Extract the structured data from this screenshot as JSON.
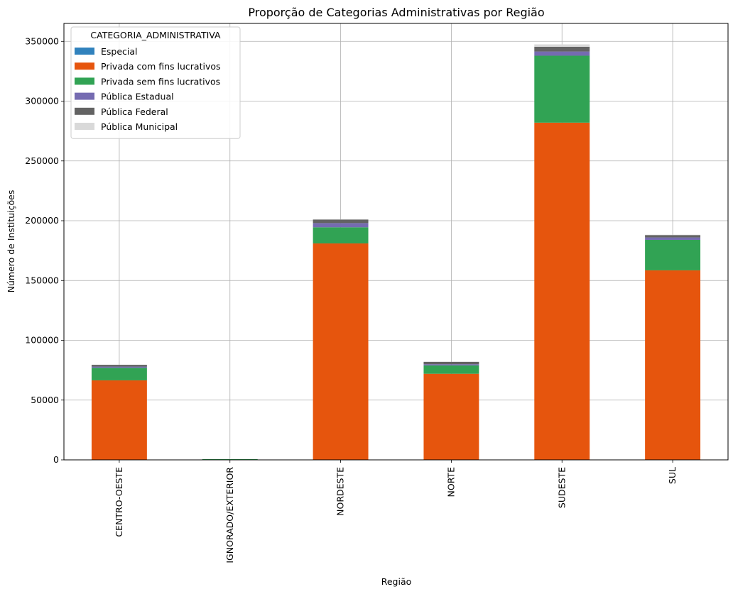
{
  "chart_data": {
    "type": "bar",
    "stacked": true,
    "title": "Proporção de Categorias Administrativas por Região",
    "xlabel": "Região",
    "ylabel": "Número de Instituições",
    "categories": [
      "CENTRO-OESTE",
      "IGNORADO/EXTERIOR",
      "NORDESTE",
      "NORTE",
      "SUDESTE",
      "SUL"
    ],
    "ylim": [
      0,
      365000
    ],
    "yticks": [
      0,
      50000,
      100000,
      150000,
      200000,
      250000,
      300000,
      350000
    ],
    "grid": true,
    "legend": {
      "title": "CATEGORIA_ADMINISTRATIVA",
      "placement": "top-left"
    },
    "series": [
      {
        "name": "Especial",
        "color": "#3182bd",
        "values": [
          0,
          0,
          0,
          0,
          0,
          0
        ]
      },
      {
        "name": "Privada com fins lucrativos",
        "color": "#e6550d",
        "values": [
          66500,
          300,
          181000,
          72000,
          282000,
          158500
        ]
      },
      {
        "name": "Privada sem fins lucrativos",
        "color": "#31a354",
        "values": [
          10500,
          300,
          13500,
          7000,
          56000,
          25500
        ]
      },
      {
        "name": "Pública Estadual",
        "color": "#756bb1",
        "values": [
          1000,
          0,
          3500,
          1000,
          3500,
          2000
        ]
      },
      {
        "name": "Pública Federal",
        "color": "#636363",
        "values": [
          1500,
          0,
          3000,
          2000,
          4000,
          2000
        ]
      },
      {
        "name": "Pública Municipal",
        "color": "#d9d9d9",
        "values": [
          100,
          0,
          200,
          100,
          2000,
          300
        ]
      }
    ]
  }
}
